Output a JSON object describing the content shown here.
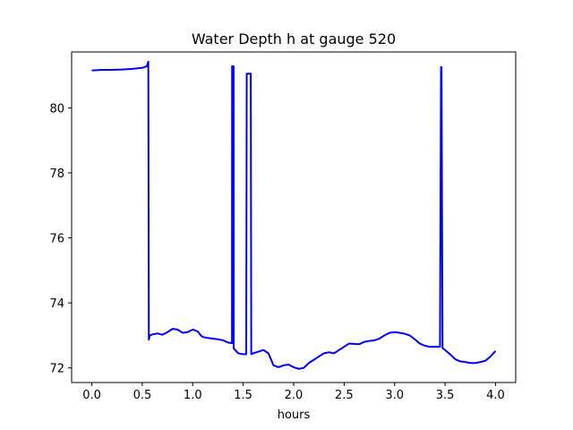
{
  "chart_data": {
    "type": "line",
    "title": "Water Depth h at gauge 520",
    "xlabel": "hours",
    "ylabel": "",
    "xlim": [
      -0.2,
      4.2
    ],
    "ylim": [
      71.55,
      81.72
    ],
    "xticks": [
      0.0,
      0.5,
      1.0,
      1.5,
      2.0,
      2.5,
      3.0,
      3.5,
      4.0
    ],
    "xtick_labels": [
      "0.0",
      "0.5",
      "1.0",
      "1.5",
      "2.0",
      "2.5",
      "3.0",
      "3.5",
      "4.0"
    ],
    "yticks": [
      72,
      74,
      76,
      78,
      80
    ],
    "ytick_labels": [
      "72",
      "74",
      "76",
      "78",
      "80"
    ],
    "grid": false,
    "legend": "none",
    "series": [
      {
        "color": "#0000ff",
        "x": [
          0.0,
          0.1,
          0.2,
          0.3,
          0.4,
          0.5,
          0.545,
          0.56,
          0.565,
          0.575,
          0.6,
          0.65,
          0.7,
          0.75,
          0.8,
          0.85,
          0.9,
          0.95,
          1.0,
          1.05,
          1.08,
          1.1,
          1.15,
          1.2,
          1.25,
          1.3,
          1.35,
          1.389,
          1.39,
          1.405,
          1.406,
          1.45,
          1.5,
          1.53,
          1.535,
          1.54,
          1.555,
          1.56,
          1.575,
          1.58,
          1.6,
          1.65,
          1.7,
          1.75,
          1.8,
          1.85,
          1.9,
          1.95,
          2.0,
          2.05,
          2.1,
          2.15,
          2.2,
          2.25,
          2.3,
          2.35,
          2.4,
          2.45,
          2.5,
          2.55,
          2.6,
          2.65,
          2.7,
          2.75,
          2.8,
          2.85,
          2.9,
          2.95,
          3.0,
          3.05,
          3.1,
          3.15,
          3.2,
          3.25,
          3.3,
          3.35,
          3.4,
          3.45,
          3.46,
          3.465,
          3.475,
          3.48,
          3.5,
          3.55,
          3.6,
          3.65,
          3.7,
          3.75,
          3.8,
          3.85,
          3.9,
          3.95,
          4.0
        ],
        "y": [
          81.15,
          81.17,
          81.17,
          81.18,
          81.2,
          81.23,
          81.28,
          81.42,
          72.87,
          73.0,
          73.03,
          73.06,
          73.02,
          73.1,
          73.2,
          73.18,
          73.08,
          73.1,
          73.18,
          73.12,
          73.0,
          72.95,
          72.92,
          72.9,
          72.88,
          72.85,
          72.78,
          72.76,
          81.28,
          81.28,
          72.6,
          72.45,
          72.42,
          72.42,
          81.05,
          81.05,
          81.05,
          81.05,
          81.05,
          72.42,
          72.45,
          72.5,
          72.55,
          72.45,
          72.08,
          72.02,
          72.08,
          72.1,
          72.02,
          71.97,
          72.0,
          72.15,
          72.25,
          72.35,
          72.45,
          72.48,
          72.45,
          72.55,
          72.65,
          72.75,
          72.74,
          72.73,
          72.8,
          72.83,
          72.85,
          72.9,
          73.0,
          73.08,
          73.1,
          73.08,
          73.05,
          73.0,
          72.88,
          72.75,
          72.68,
          72.65,
          72.65,
          72.65,
          81.25,
          81.25,
          72.62,
          72.6,
          72.55,
          72.42,
          72.27,
          72.2,
          72.18,
          72.15,
          72.15,
          72.18,
          72.22,
          72.35,
          72.52
        ]
      }
    ]
  }
}
